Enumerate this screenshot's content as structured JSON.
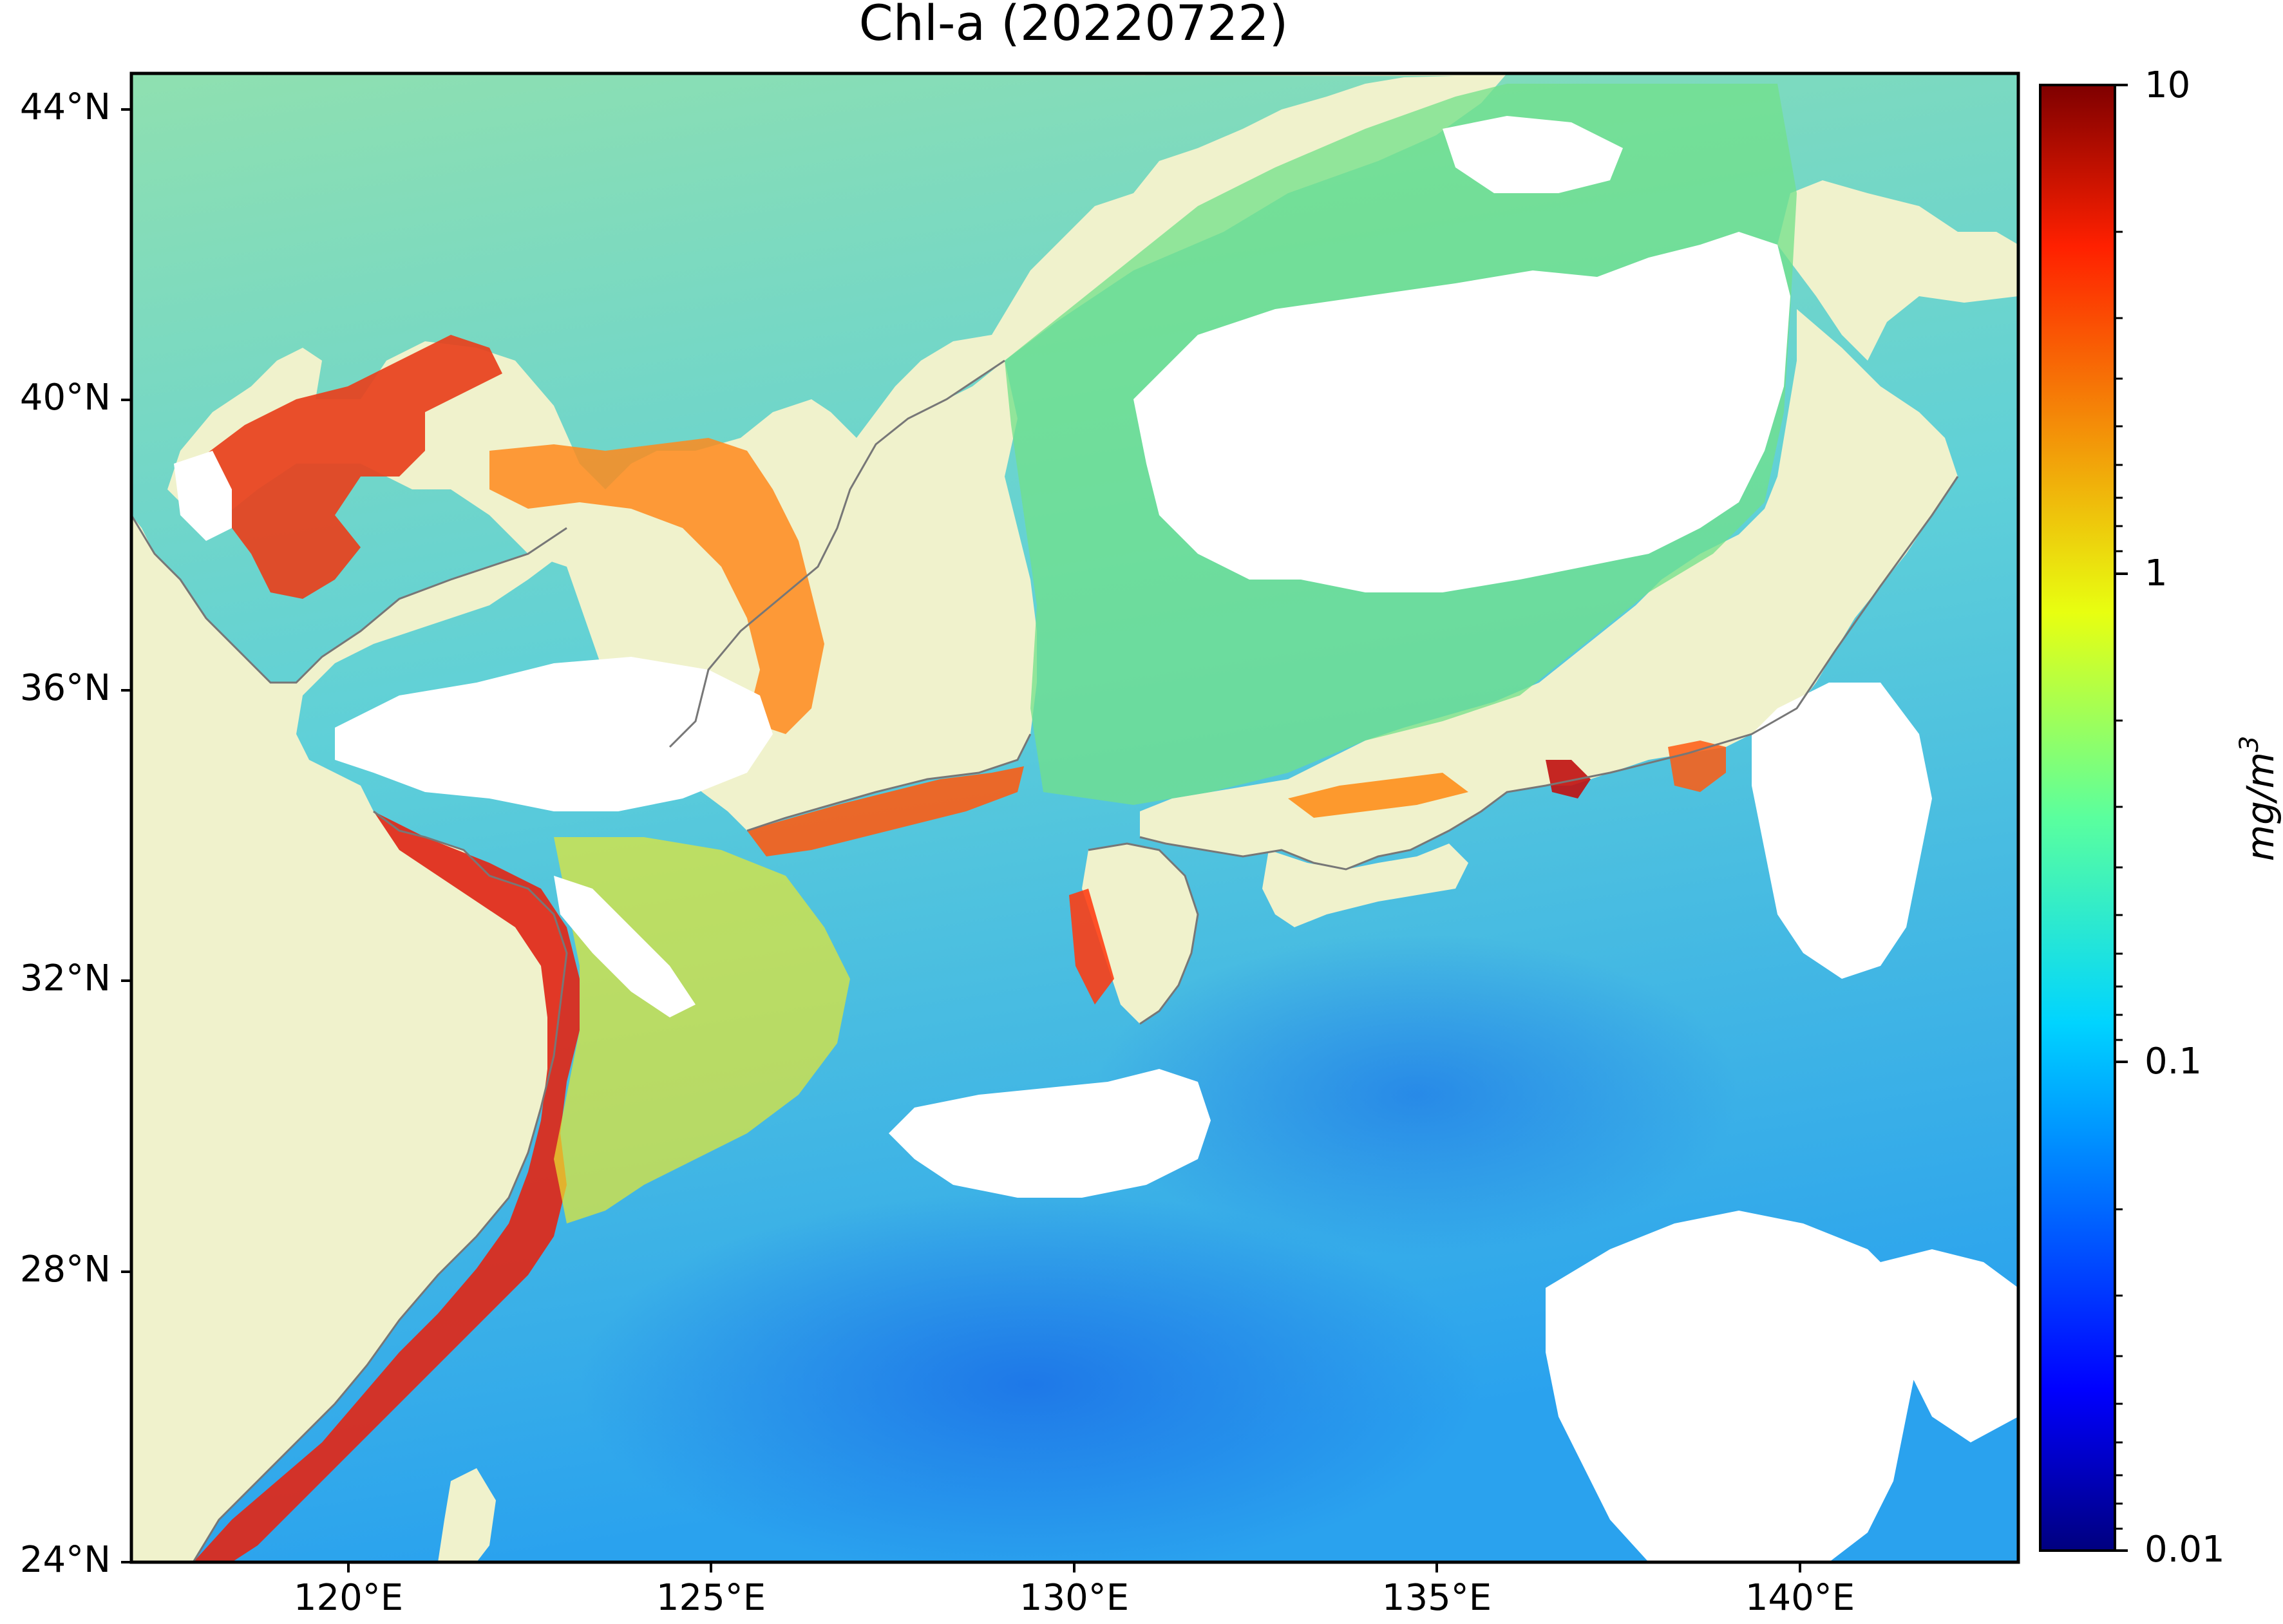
{
  "map": {
    "title": "Chl-a (20220722)",
    "lat_ticks": [
      "44°N",
      "40°N",
      "36°N",
      "32°N",
      "28°N",
      "24°N"
    ],
    "lon_ticks": [
      "120°E",
      "125°E",
      "130°E",
      "135°E",
      "140°E"
    ],
    "extent": {
      "lon": [
        117,
        143
      ],
      "lat": [
        24,
        44.5
      ]
    },
    "colors": {
      "land": "#f0f2cc",
      "coast": "#777777",
      "cloud": "#ffffff",
      "open_ocean": "#3fb8ec",
      "mid_ocean": "#6fd6c8",
      "coastal_high": "#e8401c"
    }
  },
  "colorbar": {
    "label": "mg/m",
    "label_sup": "3",
    "scale": "log",
    "range": [
      0.01,
      10
    ],
    "ticks": [
      "10",
      "1",
      "0.1",
      "0.01"
    ],
    "colormap": "jet"
  }
}
